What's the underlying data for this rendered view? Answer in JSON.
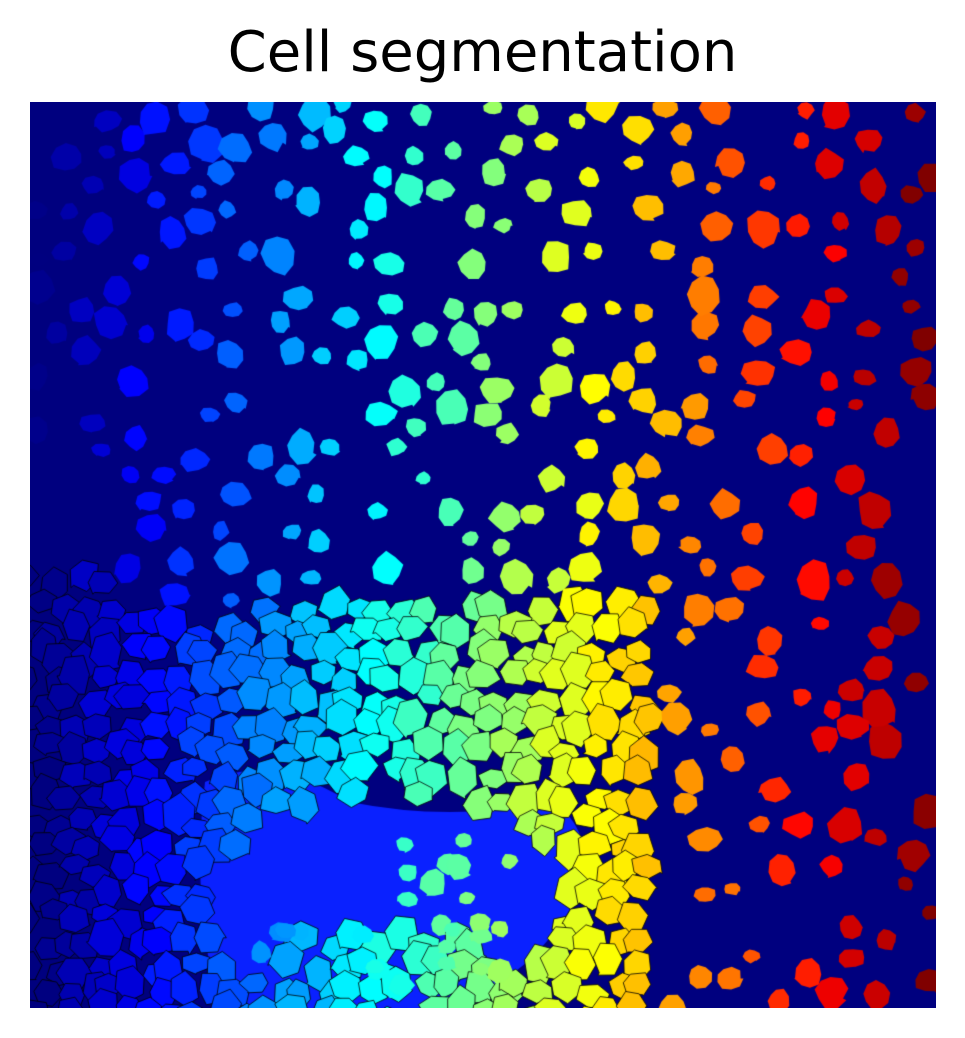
{
  "figure": {
    "title": "Cell segmentation"
  },
  "image": {
    "colormap": "jet",
    "colormap_direction": "left-to-right",
    "background_color": "#00007f",
    "boundary_color": "#000000",
    "palette": {
      "background": "#00007f",
      "cavity_fill": "#0a21ff"
    }
  }
}
